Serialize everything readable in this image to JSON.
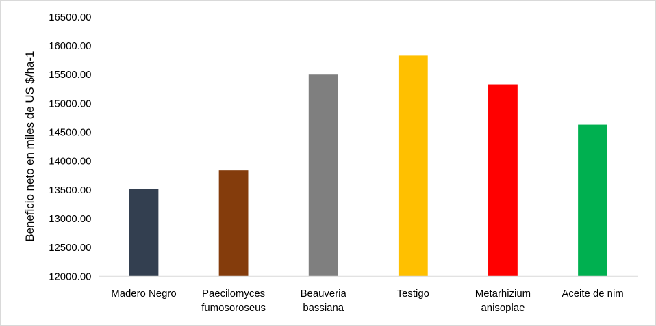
{
  "chart_data": {
    "type": "bar",
    "title": "",
    "xlabel": "",
    "ylabel": "Beneficio neto en miles de US $/ha-1",
    "ylim": [
      12000,
      16500
    ],
    "yticks": [
      "12000.00",
      "12500.00",
      "13000.00",
      "13500.00",
      "14000.00",
      "14500.00",
      "15000.00",
      "15500.00",
      "16000.00",
      "16500.00"
    ],
    "ytick_values": [
      12000,
      12500,
      13000,
      13500,
      14000,
      14500,
      15000,
      15500,
      16000,
      16500
    ],
    "categories": [
      [
        "Madero Negro"
      ],
      [
        "Paecilomyces",
        "fumosoroseus"
      ],
      [
        "Beauveria",
        "bassiana"
      ],
      [
        "Testigo"
      ],
      [
        "Metarhizium",
        "anisoplae"
      ],
      [
        "Aceite de nim"
      ]
    ],
    "values": [
      13520,
      13840,
      15500,
      15830,
      15330,
      14630
    ],
    "colors": [
      "#333f50",
      "#843c0c",
      "#7f7f7f",
      "#ffc000",
      "#ff0000",
      "#00b050"
    ],
    "grid": false,
    "legend": "none"
  }
}
